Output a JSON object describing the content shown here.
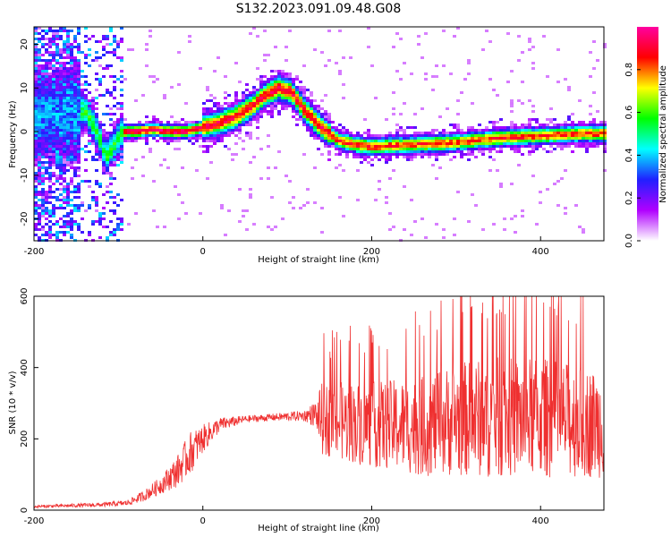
{
  "title": "S132.2023.091.09.48.G08",
  "chart_data": [
    {
      "type": "heatmap",
      "xlabel": "Height of straight line (km)",
      "ylabel": "Frequency (Hz)",
      "xlim": [
        -200,
        475
      ],
      "ylim": [
        -25,
        24
      ],
      "xticks": [
        "-200",
        "0",
        "200",
        "400"
      ],
      "yticks": [
        "20",
        "10",
        "0",
        "-10",
        "-20"
      ],
      "colorbar": {
        "label": "Normalized spectral amplitude",
        "range": [
          0,
          1
        ],
        "ticks": [
          "0.0",
          "0.2",
          "0.4",
          "0.6",
          "0.8"
        ],
        "colors": [
          "#ffffff",
          "#b000ff",
          "#2020ff",
          "#00ffff",
          "#00ff00",
          "#ffff00",
          "#ff0000",
          "#ff00a0"
        ]
      },
      "ridge": {
        "x": [
          -150,
          -140,
          -125,
          -115,
          -105,
          -95,
          -80,
          -60,
          -40,
          -20,
          0,
          20,
          40,
          60,
          75,
          90,
          105,
          120,
          140,
          160,
          180,
          200,
          250,
          300,
          350,
          400,
          450,
          475
        ],
        "y": [
          4,
          5,
          0,
          -6,
          -3,
          0,
          0,
          0.5,
          0,
          0,
          1,
          2,
          3.5,
          6,
          8.5,
          10,
          9,
          5,
          1,
          -2,
          -3,
          -3.5,
          -3,
          -2.5,
          -1.5,
          -1,
          -0.5,
          -0.5
        ]
      }
    },
    {
      "type": "line",
      "xlabel": "Height of straight line (km)",
      "ylabel": "SNR (10 * v/v)",
      "xlim": [
        -200,
        475
      ],
      "ylim": [
        0,
        600
      ],
      "xticks": [
        "-200",
        "0",
        "200",
        "400"
      ],
      "yticks": [
        "600",
        "400",
        "200",
        "0"
      ],
      "color": "#ef3030",
      "envelope": {
        "x": [
          -200,
          -120,
          -90,
          -70,
          -50,
          -30,
          -15,
          0,
          20,
          50,
          80,
          120,
          135,
          140,
          160,
          200,
          260,
          300,
          350,
          400,
          440,
          475
        ],
        "mean": [
          10,
          15,
          20,
          40,
          70,
          110,
          160,
          200,
          240,
          255,
          260,
          265,
          270,
          255,
          250,
          240,
          235,
          255,
          260,
          260,
          250,
          240
        ],
        "spread": [
          4,
          6,
          8,
          15,
          25,
          45,
          60,
          40,
          20,
          10,
          10,
          15,
          40,
          100,
          110,
          120,
          140,
          160,
          170,
          170,
          160,
          150
        ]
      }
    }
  ]
}
